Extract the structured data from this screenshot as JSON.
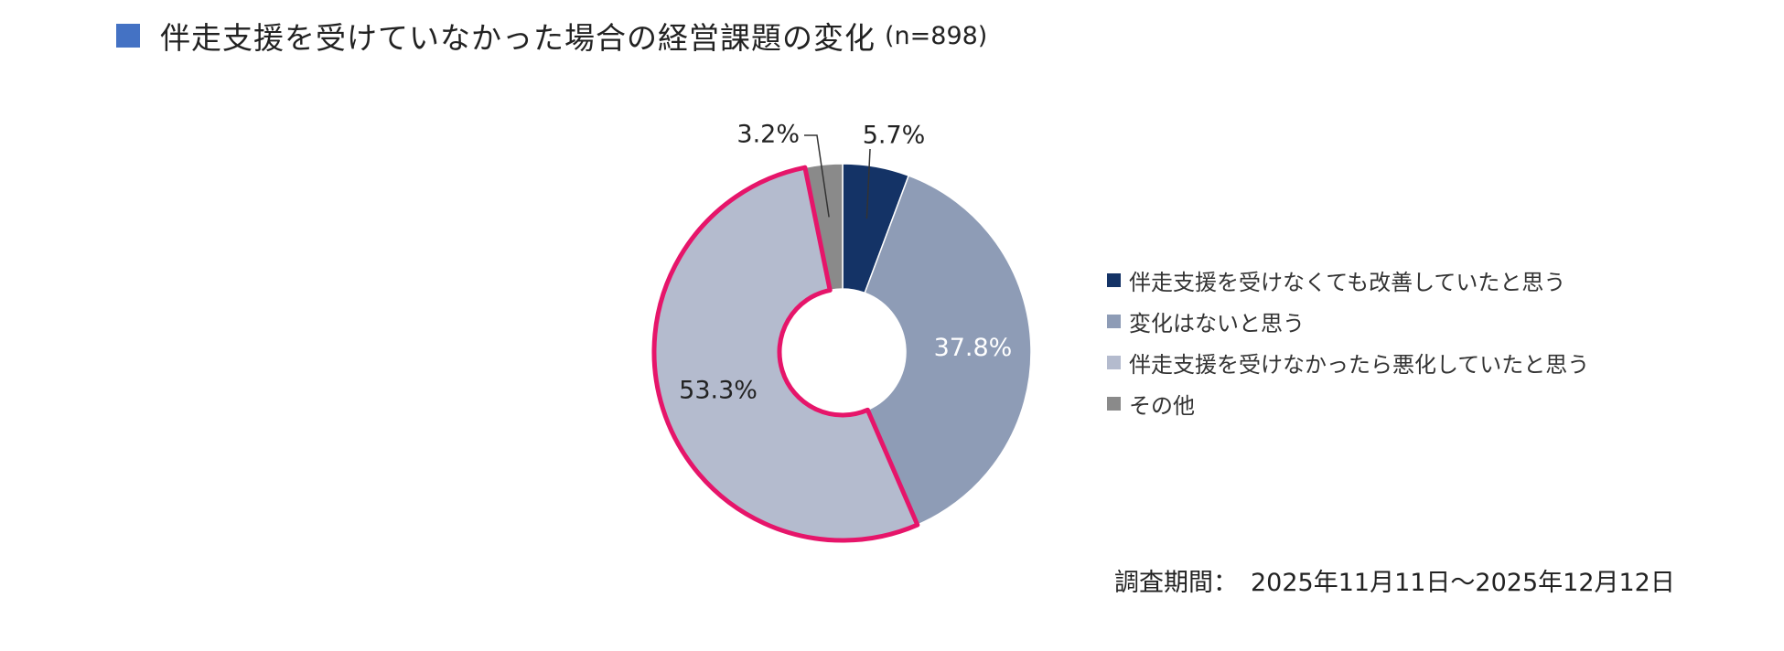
{
  "title": {
    "text": "伴走支援を受けていなかった場合の経営課題の変化",
    "n_label": "(n=898)",
    "marker_color": "#4472C4"
  },
  "chart_data": {
    "type": "pie",
    "variant": "donut",
    "title": "",
    "total_n": 898,
    "start_angle_deg": 0,
    "direction": "clockwise",
    "slices": [
      {
        "label": "伴走支援を受けなくても改善していたと思う",
        "value": 5.7,
        "display": "5.7%",
        "color": "#143366",
        "label_color": "#222222",
        "label_placement": "outside-leader",
        "highlighted": false
      },
      {
        "label": "変化はないと思う",
        "value": 37.8,
        "display": "37.8%",
        "color": "#8E9CB6",
        "label_color": "#ffffff",
        "label_placement": "inside",
        "highlighted": false
      },
      {
        "label": "伴走支援を受けなかったら悪化していたと思う",
        "value": 53.3,
        "display": "53.3%",
        "color": "#B4BBCE",
        "label_color": "#222222",
        "label_placement": "inside",
        "highlighted": true
      },
      {
        "label": "その他",
        "value": 3.2,
        "display": "3.2%",
        "color": "#8A8A8A",
        "label_color": "#222222",
        "label_placement": "outside-leader",
        "highlighted": false
      }
    ],
    "highlight_color": "#E6156A",
    "legend_position": "right"
  },
  "survey_period": {
    "label": "調査期間：",
    "value": "2025年11月11日～2025年12月12日"
  }
}
